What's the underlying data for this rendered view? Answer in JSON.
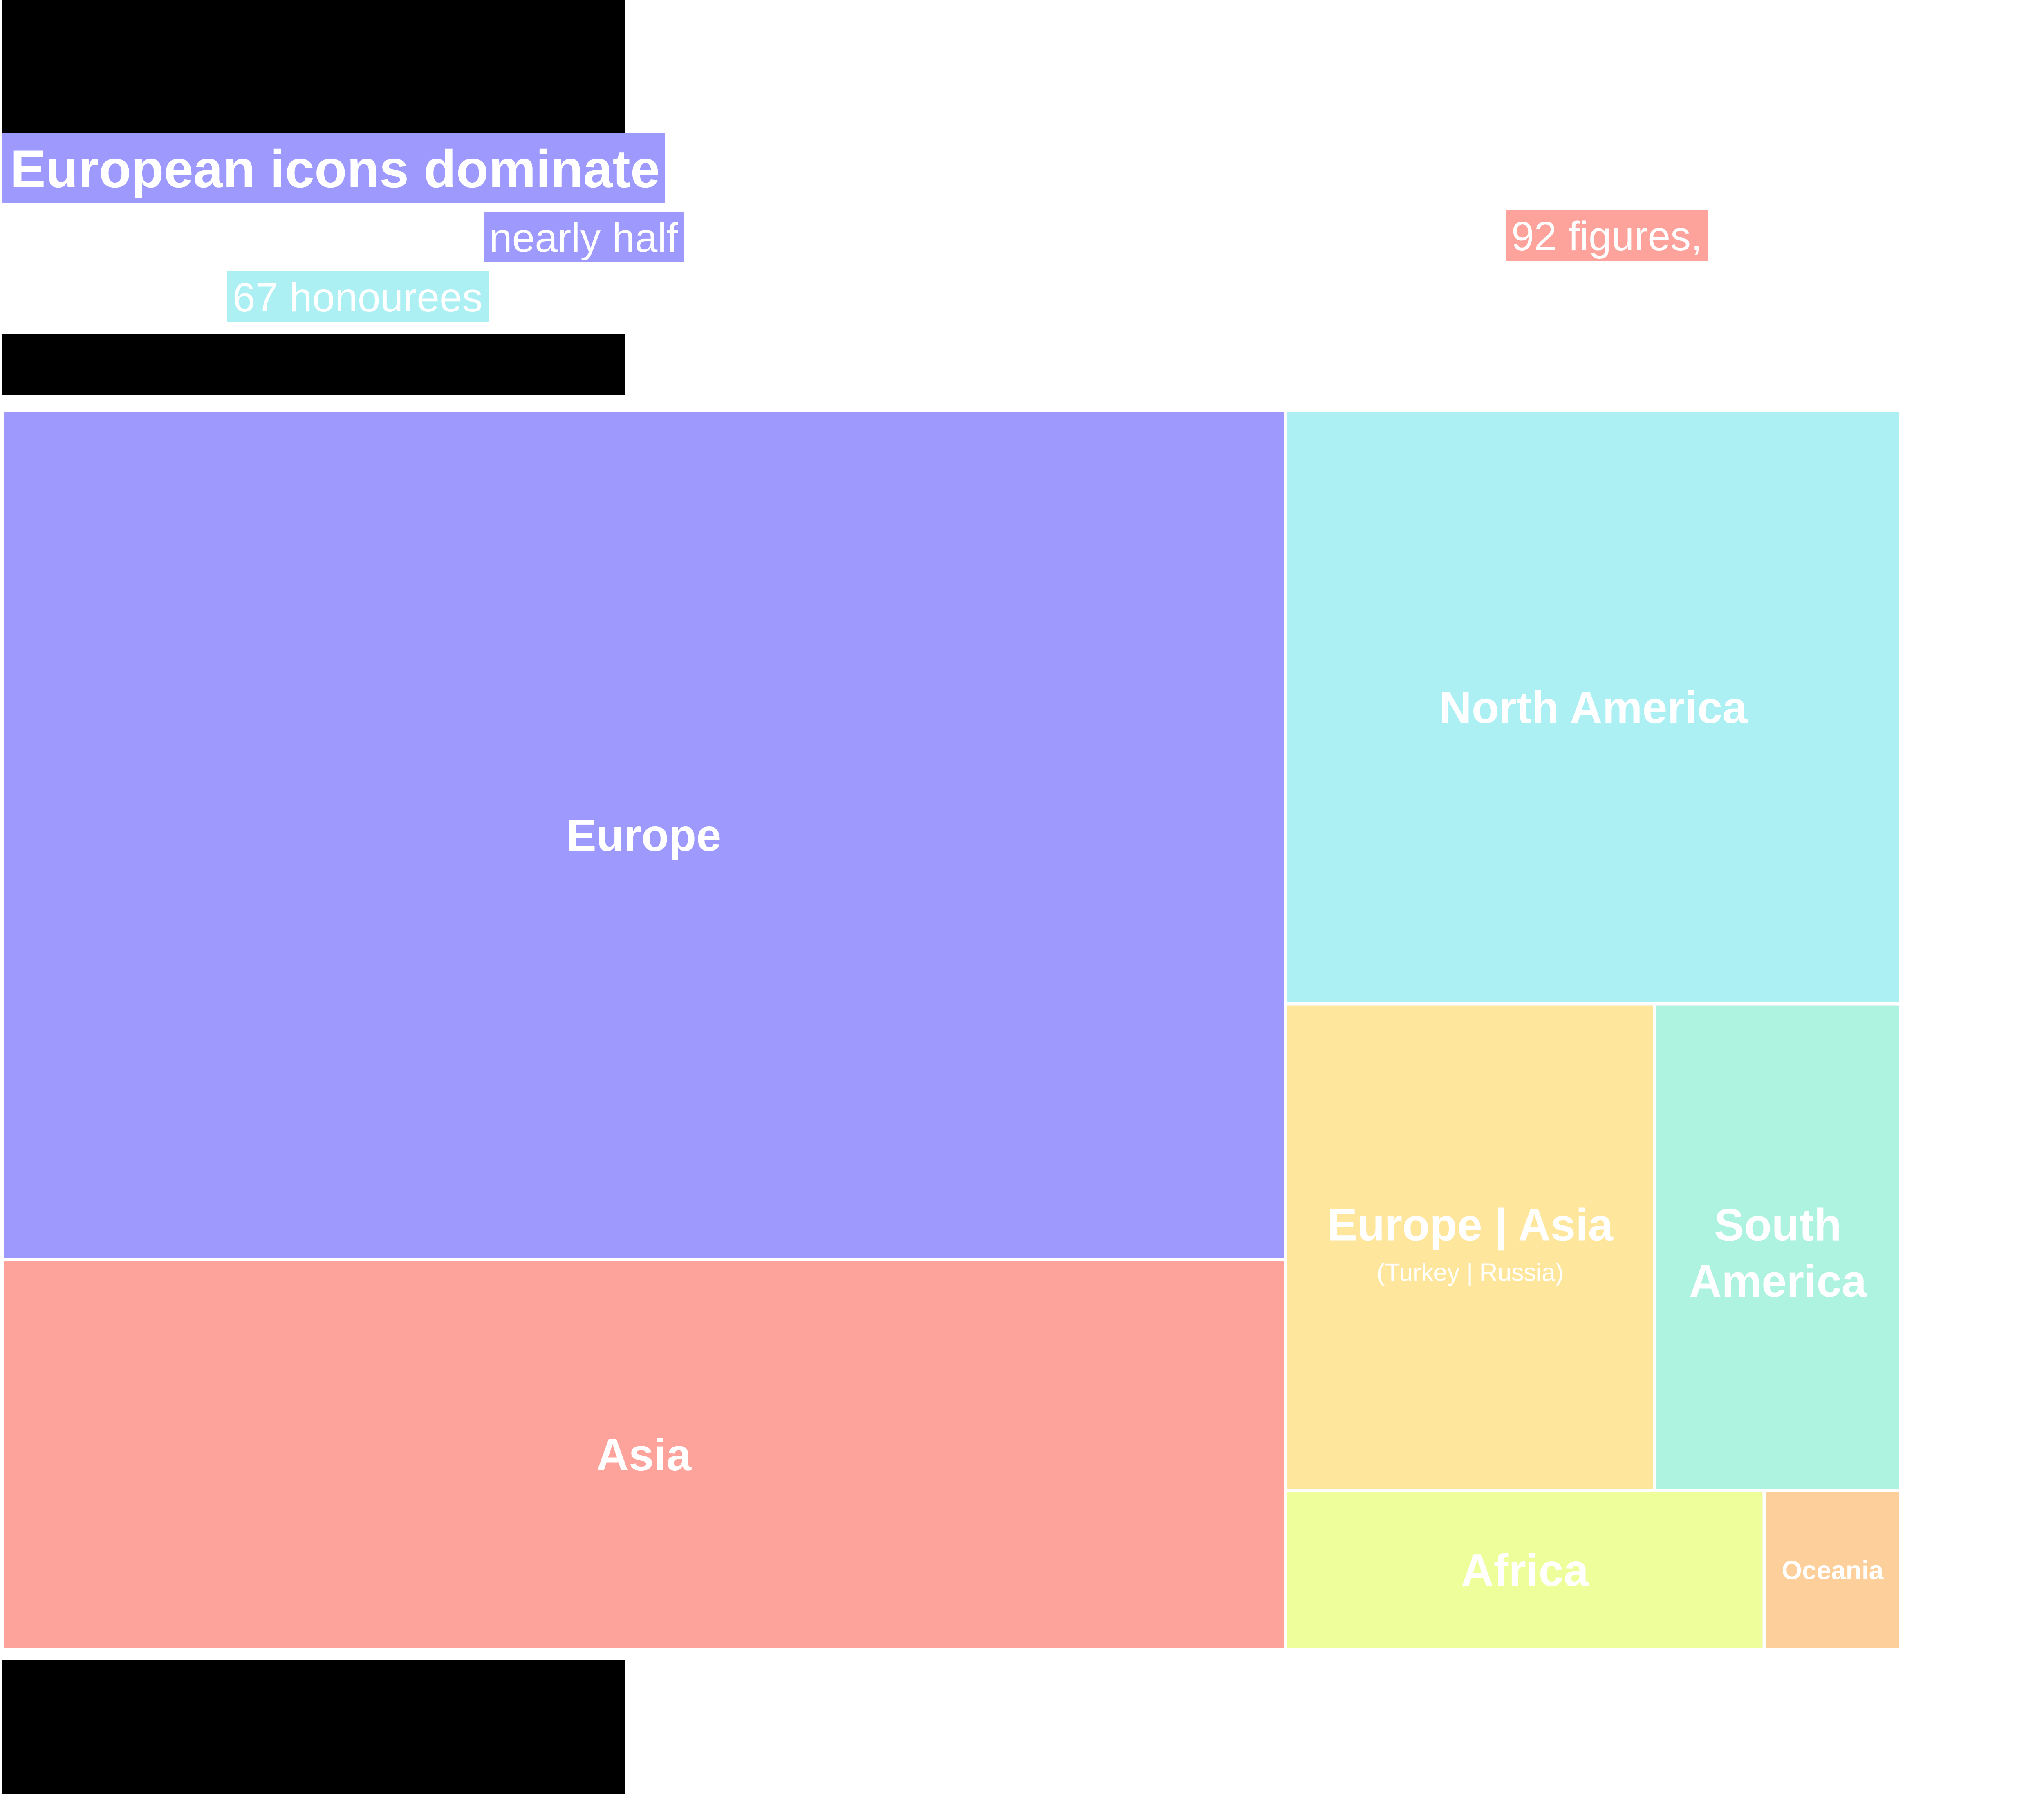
{
  "header": {
    "title": "European icons dominate",
    "highlights": {
      "nearly_half": "nearly half",
      "honourees_67": "67 honourees",
      "figures_92": "92 figures,"
    }
  },
  "colors": {
    "Europe": "#9e9afd",
    "Asia": "#fea39b",
    "North America": "#acf0f3",
    "Europe | Asia": "#fee69c",
    "South America": "#aef2e0",
    "Africa": "#eefe9a",
    "Oceania": "#fdcf9a",
    "background": "#ffffff",
    "redaction": "#000000"
  },
  "chart_data": {
    "type": "treemap",
    "title": "European icons dominate",
    "units": "honourees",
    "nodes": [
      {
        "label": "Europe",
        "value": 200
      },
      {
        "label": "Asia",
        "value": 92
      },
      {
        "label": "North America",
        "value": 67
      },
      {
        "label": "Europe | Asia",
        "sublabel": "(Turkey | Russia)",
        "value": 33
      },
      {
        "label": "South America",
        "value": 22
      },
      {
        "label": "Africa",
        "value": 14
      },
      {
        "label": "Oceania",
        "value": 4
      }
    ]
  }
}
